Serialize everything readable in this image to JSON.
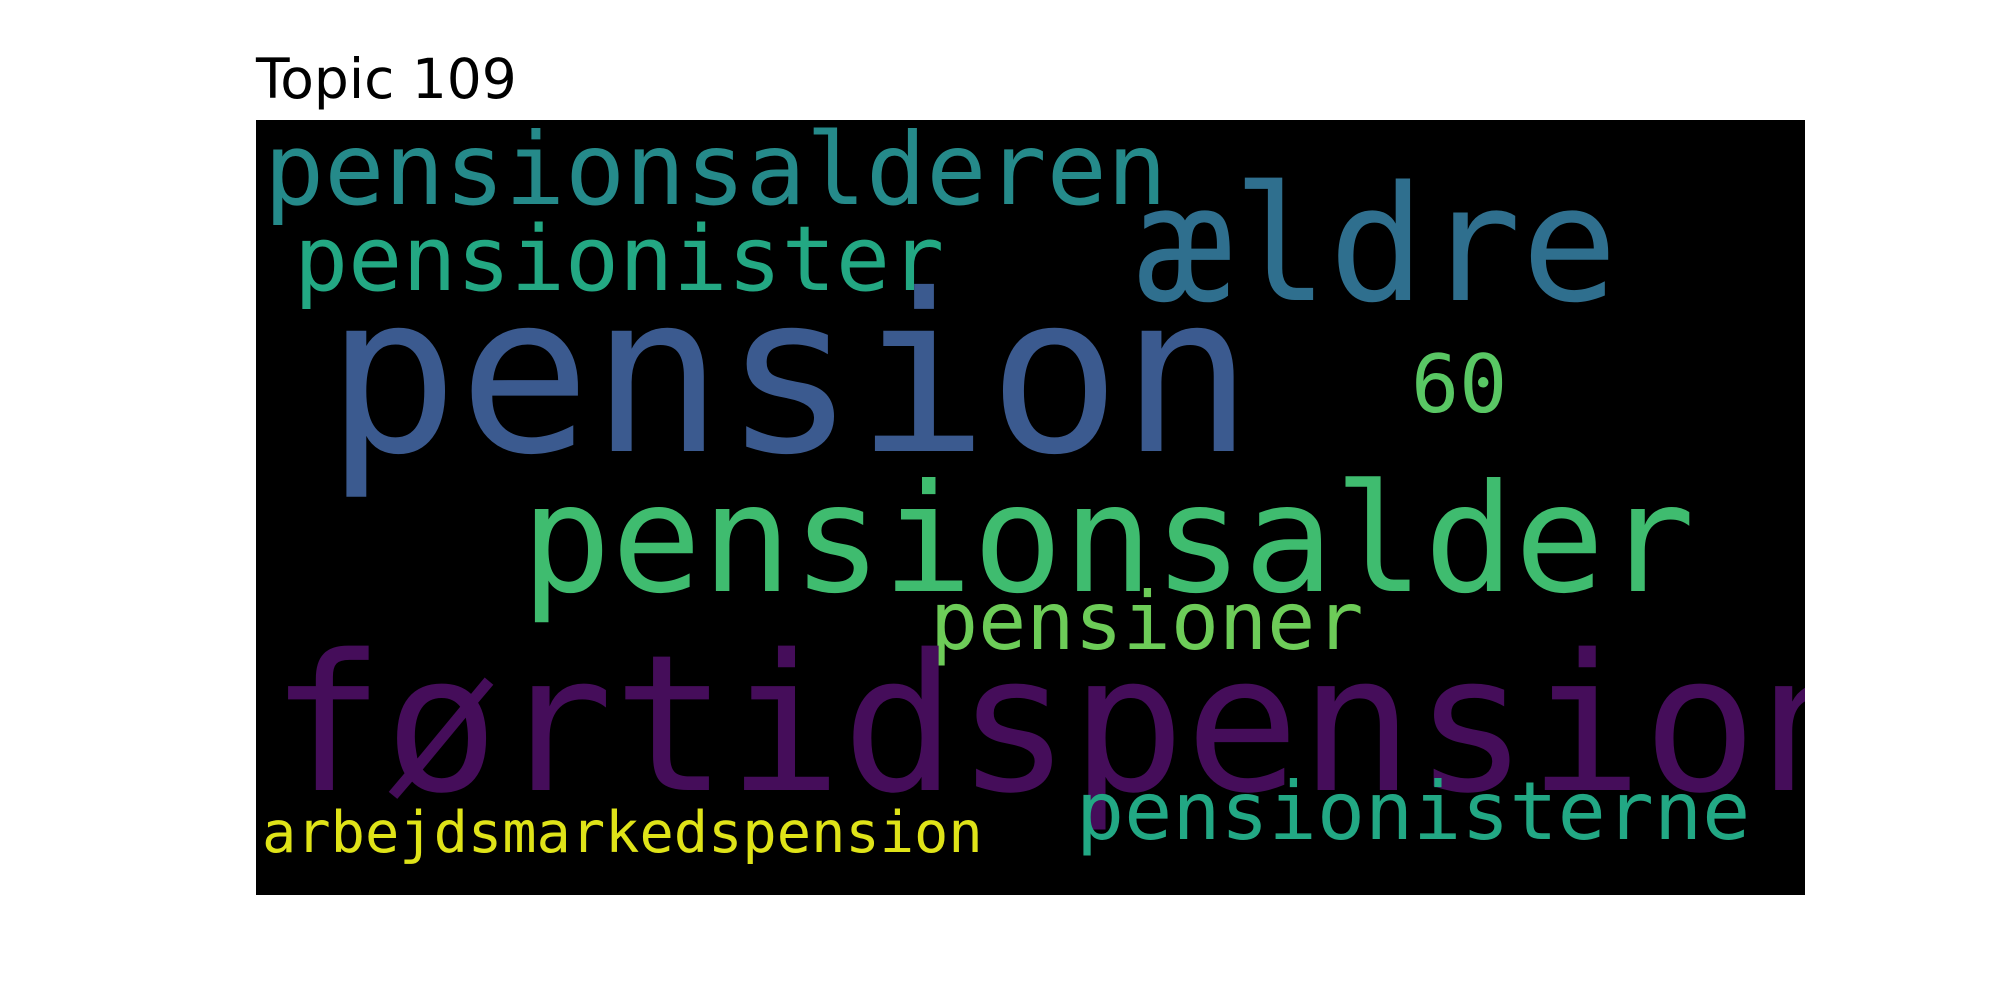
{
  "title": "Topic 109",
  "wordcloud": {
    "background": "#000000",
    "words": [
      {
        "text": "pension",
        "color": "#3b5a8f",
        "rank": 1
      },
      {
        "text": "førtidspension",
        "color": "#450d5a",
        "rank": 2
      },
      {
        "text": "pensionsalder",
        "color": "#3fbc6f",
        "rank": 3
      },
      {
        "text": "ældre",
        "color": "#2f6f8e",
        "rank": 4
      },
      {
        "text": "pensionsalderen",
        "color": "#258a8a",
        "rank": 5
      },
      {
        "text": "pensionister",
        "color": "#23a883",
        "rank": 6
      },
      {
        "text": "pensionisterne",
        "color": "#22a884",
        "rank": 7
      },
      {
        "text": "pensioner",
        "color": "#6dcc58",
        "rank": 8
      },
      {
        "text": "60",
        "color": "#59c764",
        "rank": 9
      },
      {
        "text": "arbejdsmarkedspension",
        "color": "#dfe318",
        "rank": 10
      }
    ]
  }
}
